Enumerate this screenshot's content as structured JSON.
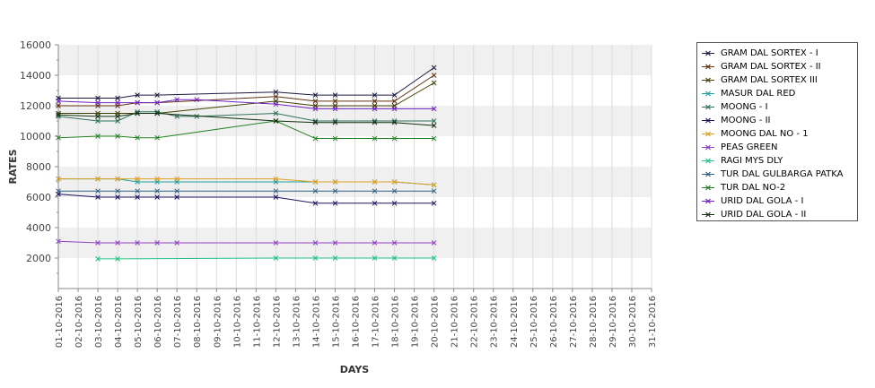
{
  "chart_data": {
    "type": "line",
    "xlabel": "DAYS",
    "ylabel": "RATES",
    "ylim": [
      0,
      16000
    ],
    "yticks": [
      2000,
      4000,
      6000,
      8000,
      10000,
      12000,
      14000,
      16000
    ],
    "categories": [
      "01-10-2016",
      "02-10-2016",
      "03-10-2016",
      "04-10-2016",
      "05-10-2016",
      "06-10-2016",
      "07-10-2016",
      "08-10-2016",
      "09-10-2016",
      "10-10-2016",
      "11-10-2016",
      "12-10-2016",
      "13-10-2016",
      "14-10-2016",
      "15-10-2016",
      "16-10-2016",
      "17-10-2016",
      "18-10-2016",
      "19-10-2016",
      "20-10-2016",
      "21-10-2016",
      "22-10-2016",
      "23-10-2016",
      "24-10-2016",
      "25-10-2016",
      "26-10-2016",
      "27-10-2016",
      "28-10-2016",
      "29-10-2016",
      "30-10-2016",
      "31-10-2016"
    ],
    "grid": "horizontal alternating bands",
    "legend_position": "right",
    "series": [
      {
        "name": "GRAM DAL SORTEX  - I",
        "color": "#1a1a40",
        "points": [
          [
            "01-10-2016",
            12500
          ],
          [
            "03-10-2016",
            12500
          ],
          [
            "04-10-2016",
            12500
          ],
          [
            "05-10-2016",
            12700
          ],
          [
            "06-10-2016",
            12700
          ],
          [
            "12-10-2016",
            12900
          ],
          [
            "14-10-2016",
            12700
          ],
          [
            "15-10-2016",
            12700
          ],
          [
            "17-10-2016",
            12700
          ],
          [
            "18-10-2016",
            12700
          ],
          [
            "20-10-2016",
            14500
          ]
        ]
      },
      {
        "name": "GRAM DAL SORTEX - II",
        "color": "#603010",
        "points": [
          [
            "01-10-2016",
            12000
          ],
          [
            "03-10-2016",
            12000
          ],
          [
            "04-10-2016",
            12000
          ],
          [
            "05-10-2016",
            12200
          ],
          [
            "06-10-2016",
            12200
          ],
          [
            "12-10-2016",
            12600
          ],
          [
            "14-10-2016",
            12300
          ],
          [
            "15-10-2016",
            12300
          ],
          [
            "17-10-2016",
            12300
          ],
          [
            "18-10-2016",
            12300
          ],
          [
            "20-10-2016",
            14000
          ]
        ]
      },
      {
        "name": "GRAM DAL SORTEX III",
        "color": "#404000",
        "points": [
          [
            "01-10-2016",
            11500
          ],
          [
            "03-10-2016",
            11500
          ],
          [
            "04-10-2016",
            11500
          ],
          [
            "05-10-2016",
            11500
          ],
          [
            "06-10-2016",
            11500
          ],
          [
            "12-10-2016",
            12300
          ],
          [
            "14-10-2016",
            12000
          ],
          [
            "15-10-2016",
            12000
          ],
          [
            "17-10-2016",
            12000
          ],
          [
            "18-10-2016",
            12000
          ],
          [
            "20-10-2016",
            13500
          ]
        ]
      },
      {
        "name": "MASUR DAL RED",
        "color": "#20a0a0",
        "points": [
          [
            "01-10-2016",
            7200
          ],
          [
            "03-10-2016",
            7200
          ],
          [
            "04-10-2016",
            7200
          ],
          [
            "05-10-2016",
            7000
          ],
          [
            "06-10-2016",
            7000
          ],
          [
            "07-10-2016",
            7000
          ],
          [
            "12-10-2016",
            7000
          ],
          [
            "14-10-2016",
            7000
          ],
          [
            "15-10-2016",
            7000
          ],
          [
            "17-10-2016",
            7000
          ],
          [
            "18-10-2016",
            7000
          ],
          [
            "20-10-2016",
            6800
          ]
        ]
      },
      {
        "name": "MOONG - I",
        "color": "#30705a",
        "points": [
          [
            "01-10-2016",
            11300
          ],
          [
            "03-10-2016",
            11000
          ],
          [
            "04-10-2016",
            11000
          ],
          [
            "05-10-2016",
            11600
          ],
          [
            "06-10-2016",
            11600
          ],
          [
            "07-10-2016",
            11300
          ],
          [
            "08-10-2016",
            11300
          ],
          [
            "12-10-2016",
            11500
          ],
          [
            "14-10-2016",
            11000
          ],
          [
            "15-10-2016",
            11000
          ],
          [
            "17-10-2016",
            11000
          ],
          [
            "18-10-2016",
            11000
          ],
          [
            "20-10-2016",
            11000
          ]
        ]
      },
      {
        "name": "MOONG - II",
        "color": "#201060",
        "points": [
          [
            "01-10-2016",
            6200
          ],
          [
            "03-10-2016",
            6000
          ],
          [
            "04-10-2016",
            6000
          ],
          [
            "05-10-2016",
            6000
          ],
          [
            "06-10-2016",
            6000
          ],
          [
            "07-10-2016",
            6000
          ],
          [
            "12-10-2016",
            6000
          ],
          [
            "14-10-2016",
            5600
          ],
          [
            "15-10-2016",
            5600
          ],
          [
            "17-10-2016",
            5600
          ],
          [
            "18-10-2016",
            5600
          ],
          [
            "20-10-2016",
            5600
          ]
        ]
      },
      {
        "name": "MOONG DAL NO - 1",
        "color": "#e0a020",
        "points": [
          [
            "01-10-2016",
            7200
          ],
          [
            "03-10-2016",
            7200
          ],
          [
            "04-10-2016",
            7200
          ],
          [
            "05-10-2016",
            7200
          ],
          [
            "06-10-2016",
            7200
          ],
          [
            "07-10-2016",
            7200
          ],
          [
            "12-10-2016",
            7200
          ],
          [
            "14-10-2016",
            7000
          ],
          [
            "15-10-2016",
            7000
          ],
          [
            "17-10-2016",
            7000
          ],
          [
            "18-10-2016",
            7000
          ],
          [
            "20-10-2016",
            6800
          ]
        ]
      },
      {
        "name": "PEAS GREEN",
        "color": "#9040c0",
        "points": [
          [
            "01-10-2016",
            3100
          ],
          [
            "03-10-2016",
            3000
          ],
          [
            "04-10-2016",
            3000
          ],
          [
            "05-10-2016",
            3000
          ],
          [
            "06-10-2016",
            3000
          ],
          [
            "07-10-2016",
            3000
          ],
          [
            "12-10-2016",
            3000
          ],
          [
            "14-10-2016",
            3000
          ],
          [
            "15-10-2016",
            3000
          ],
          [
            "17-10-2016",
            3000
          ],
          [
            "18-10-2016",
            3000
          ],
          [
            "20-10-2016",
            3000
          ]
        ]
      },
      {
        "name": "RAGI MYS DLY",
        "color": "#20c080",
        "points": [
          [
            "03-10-2016",
            1950
          ],
          [
            "04-10-2016",
            1950
          ],
          [
            "12-10-2016",
            2000
          ],
          [
            "14-10-2016",
            2000
          ],
          [
            "15-10-2016",
            2000
          ],
          [
            "17-10-2016",
            2000
          ],
          [
            "18-10-2016",
            2000
          ],
          [
            "20-10-2016",
            2000
          ]
        ]
      },
      {
        "name": "TUR DAL GULBARGA PATKA",
        "color": "#306080",
        "points": [
          [
            "01-10-2016",
            6400
          ],
          [
            "03-10-2016",
            6400
          ],
          [
            "04-10-2016",
            6400
          ],
          [
            "05-10-2016",
            6400
          ],
          [
            "06-10-2016",
            6400
          ],
          [
            "07-10-2016",
            6400
          ],
          [
            "12-10-2016",
            6400
          ],
          [
            "14-10-2016",
            6400
          ],
          [
            "15-10-2016",
            6400
          ],
          [
            "17-10-2016",
            6400
          ],
          [
            "18-10-2016",
            6400
          ],
          [
            "20-10-2016",
            6400
          ]
        ]
      },
      {
        "name": "TUR DAL NO-2",
        "color": "#208020",
        "points": [
          [
            "01-10-2016",
            9900
          ],
          [
            "03-10-2016",
            10000
          ],
          [
            "04-10-2016",
            10000
          ],
          [
            "05-10-2016",
            9900
          ],
          [
            "06-10-2016",
            9900
          ],
          [
            "12-10-2016",
            11000
          ],
          [
            "14-10-2016",
            9850
          ],
          [
            "15-10-2016",
            9850
          ],
          [
            "17-10-2016",
            9850
          ],
          [
            "18-10-2016",
            9850
          ],
          [
            "20-10-2016",
            9850
          ]
        ]
      },
      {
        "name": "URID DAL GOLA - I",
        "color": "#7020c0",
        "points": [
          [
            "01-10-2016",
            12300
          ],
          [
            "03-10-2016",
            12200
          ],
          [
            "04-10-2016",
            12200
          ],
          [
            "05-10-2016",
            12200
          ],
          [
            "06-10-2016",
            12200
          ],
          [
            "07-10-2016",
            12400
          ],
          [
            "08-10-2016",
            12400
          ],
          [
            "12-10-2016",
            12100
          ],
          [
            "14-10-2016",
            11800
          ],
          [
            "15-10-2016",
            11800
          ],
          [
            "17-10-2016",
            11800
          ],
          [
            "18-10-2016",
            11800
          ],
          [
            "20-10-2016",
            11800
          ]
        ]
      },
      {
        "name": "URID DAL GOLA - II",
        "color": "#103010",
        "points": [
          [
            "01-10-2016",
            11400
          ],
          [
            "03-10-2016",
            11300
          ],
          [
            "04-10-2016",
            11300
          ],
          [
            "05-10-2016",
            11500
          ],
          [
            "06-10-2016",
            11500
          ],
          [
            "12-10-2016",
            11000
          ],
          [
            "14-10-2016",
            10900
          ],
          [
            "15-10-2016",
            10900
          ],
          [
            "17-10-2016",
            10900
          ],
          [
            "18-10-2016",
            10900
          ],
          [
            "20-10-2016",
            10700
          ]
        ]
      }
    ]
  }
}
